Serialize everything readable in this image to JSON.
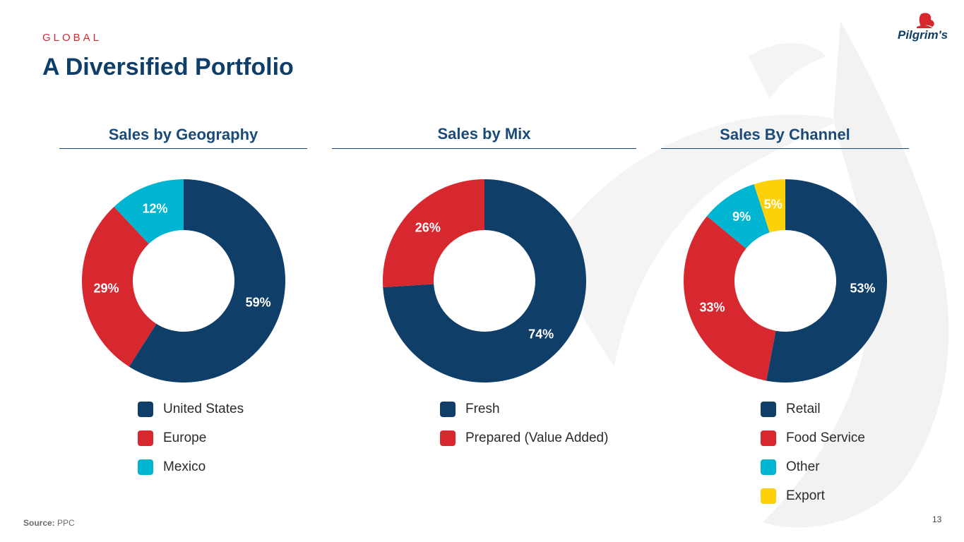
{
  "header": {
    "eyebrow": "GLOBAL",
    "title": "A Diversified Portfolio",
    "logo_text": "Pilgrim's"
  },
  "colors": {
    "navy": "#0f3e68",
    "red": "#d7282f",
    "cyan": "#00b5d1",
    "yellow": "#fdd109"
  },
  "chart_data": [
    {
      "type": "pie",
      "title": "Sales by Geography",
      "categories": [
        "United States",
        "Europe",
        "Mexico"
      ],
      "values": [
        59,
        29,
        12
      ],
      "labels": [
        "59%",
        "29%",
        "12%"
      ],
      "colors": [
        "#0f3e68",
        "#d7282f",
        "#00b5d1"
      ],
      "donut": true
    },
    {
      "type": "pie",
      "title": "Sales by Mix",
      "categories": [
        "Fresh",
        "Prepared (Value Added)"
      ],
      "values": [
        74,
        26
      ],
      "labels": [
        "74%",
        "26%"
      ],
      "colors": [
        "#0f3e68",
        "#d7282f"
      ],
      "donut": true
    },
    {
      "type": "pie",
      "title": "Sales By Channel",
      "categories": [
        "Retail",
        "Food Service",
        "Other",
        "Export"
      ],
      "values": [
        53,
        33,
        9,
        5
      ],
      "labels": [
        "53%",
        "33%",
        "9%",
        "5%"
      ],
      "colors": [
        "#0f3e68",
        "#d7282f",
        "#00b5d1",
        "#fdd109"
      ],
      "donut": true
    }
  ],
  "footer": {
    "source_label": "Source:",
    "source_value": "PPC",
    "page_number": "13"
  }
}
